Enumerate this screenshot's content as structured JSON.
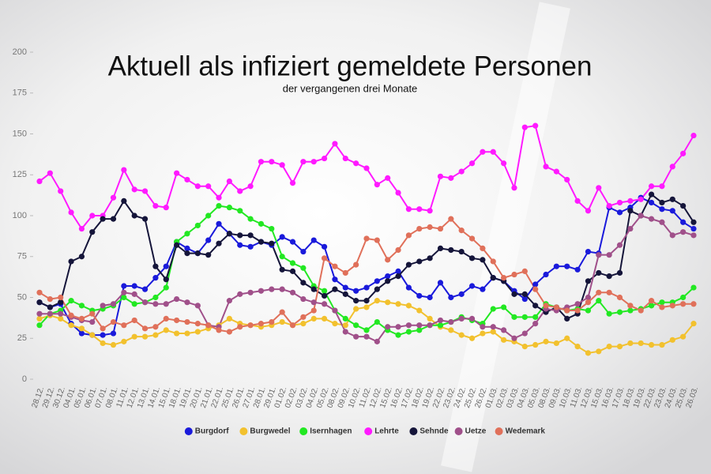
{
  "chart_data": {
    "type": "line",
    "title": "Aktuell als infiziert gemeldete Personen",
    "subtitle": "der vergangenen drei Monate",
    "categories": [
      "28.12.",
      "29.12.",
      "30.12.",
      "04.01.",
      "05.01.",
      "06.01.",
      "07.01.",
      "08.01.",
      "11.01.",
      "12.01.",
      "13.01.",
      "14.01.",
      "15.01.",
      "18.01.",
      "19.01.",
      "20.01.",
      "21.01.",
      "22.01.",
      "25.01.",
      "26.01.",
      "27.01.",
      "28.01.",
      "29.01.",
      "01.02.",
      "02.02.",
      "03.02.",
      "04.02.",
      "05.02.",
      "08.02.",
      "09.02.",
      "10.02.",
      "11.02.",
      "12.02.",
      "15.02.",
      "16.02.",
      "17.02.",
      "18.02.",
      "19.02.",
      "22.02.",
      "23.02.",
      "24.02.",
      "25.02.",
      "26.02.",
      "01.03.",
      "02.03.",
      "03.03.",
      "04.03.",
      "05.03.",
      "08.03.",
      "09.03.",
      "10.03.",
      "11.03.",
      "12.03.",
      "15.03.",
      "16.03.",
      "17.03.",
      "18.03.",
      "19.03.",
      "22.03.",
      "23.03.",
      "24.03.",
      "25.03.",
      "26.03."
    ],
    "series": [
      {
        "name": "Burgdorf",
        "color": "#1a1adb",
        "values": [
          47,
          44,
          46,
          34,
          28,
          27,
          27,
          28,
          57,
          57,
          55,
          62,
          69,
          84,
          80,
          77,
          85,
          95,
          89,
          82,
          81,
          84,
          82,
          87,
          84,
          78,
          85,
          81,
          61,
          56,
          54,
          56,
          60,
          63,
          66,
          56,
          51,
          50,
          59,
          50,
          52,
          57,
          55,
          62,
          60,
          54,
          49,
          58,
          64,
          69,
          69,
          67,
          78,
          77,
          105,
          102,
          105,
          111,
          108,
          104,
          103,
          96,
          92
        ]
      },
      {
        "name": "Burgwedel",
        "color": "#f2c12e",
        "values": [
          37,
          39,
          37,
          33,
          31,
          27,
          22,
          21,
          23,
          26,
          26,
          27,
          30,
          28,
          28,
          29,
          31,
          33,
          37,
          34,
          33,
          32,
          33,
          35,
          33,
          34,
          37,
          37,
          34,
          33,
          43,
          44,
          48,
          47,
          46,
          45,
          42,
          37,
          32,
          30,
          27,
          25,
          28,
          29,
          24,
          23,
          20,
          21,
          23,
          22,
          25,
          20,
          16,
          17,
          20,
          20,
          22,
          22,
          21,
          21,
          24,
          26,
          34
        ]
      },
      {
        "name": "Isernhagen",
        "color": "#22e822",
        "values": [
          33,
          40,
          42,
          48,
          45,
          42,
          43,
          45,
          50,
          46,
          47,
          50,
          56,
          84,
          89,
          94,
          100,
          106,
          105,
          103,
          98,
          95,
          92,
          75,
          71,
          68,
          57,
          54,
          42,
          37,
          33,
          30,
          35,
          30,
          27,
          29,
          30,
          33,
          33,
          35,
          38,
          36,
          34,
          43,
          44,
          38,
          38,
          38,
          46,
          44,
          42,
          43,
          42,
          48,
          40,
          41,
          42,
          43,
          45,
          47,
          47,
          50,
          56
        ]
      },
      {
        "name": "Lehrte",
        "color": "#ff1aff",
        "values": [
          121,
          126,
          115,
          102,
          92,
          100,
          100,
          111,
          128,
          116,
          115,
          106,
          105,
          126,
          122,
          118,
          118,
          111,
          121,
          115,
          118,
          133,
          133,
          131,
          120,
          133,
          133,
          135,
          144,
          135,
          132,
          129,
          119,
          123,
          114,
          104,
          104,
          103,
          124,
          123,
          127,
          132,
          139,
          139,
          132,
          117,
          154,
          155,
          130,
          127,
          122,
          109,
          103,
          117,
          106,
          108,
          109,
          110,
          118,
          118,
          130,
          138,
          149
        ]
      },
      {
        "name": "Sehnde",
        "color": "#15153a",
        "values": [
          47,
          44,
          47,
          72,
          75,
          90,
          98,
          98,
          109,
          100,
          98,
          69,
          61,
          82,
          77,
          77,
          76,
          83,
          89,
          88,
          88,
          84,
          83,
          67,
          66,
          59,
          55,
          51,
          55,
          52,
          48,
          48,
          55,
          60,
          63,
          70,
          72,
          74,
          80,
          79,
          78,
          74,
          73,
          62,
          60,
          52,
          52,
          45,
          41,
          44,
          37,
          40,
          60,
          65,
          63,
          65,
          103,
          100,
          113,
          108,
          110,
          106,
          96
        ]
      },
      {
        "name": "Uetze",
        "color": "#a0508a",
        "values": [
          40,
          40,
          40,
          38,
          36,
          35,
          45,
          46,
          53,
          52,
          47,
          46,
          46,
          49,
          47,
          45,
          33,
          32,
          48,
          52,
          53,
          54,
          55,
          55,
          53,
          49,
          47,
          46,
          42,
          29,
          26,
          26,
          23,
          32,
          32,
          33,
          33,
          33,
          36,
          35,
          37,
          37,
          32,
          32,
          30,
          25,
          28,
          34,
          43,
          42,
          44,
          46,
          50,
          76,
          76,
          82,
          92,
          100,
          98,
          96,
          88,
          90,
          88
        ]
      },
      {
        "name": "Wedemark",
        "color": "#e0705a",
        "values": [
          53,
          49,
          50,
          39,
          37,
          40,
          31,
          35,
          33,
          36,
          31,
          32,
          37,
          36,
          35,
          34,
          33,
          30,
          29,
          32,
          33,
          34,
          35,
          41,
          33,
          38,
          42,
          74,
          69,
          65,
          70,
          86,
          85,
          73,
          79,
          88,
          92,
          93,
          92,
          98,
          91,
          86,
          80,
          72,
          62,
          64,
          66,
          55,
          45,
          44,
          42,
          42,
          47,
          53,
          53,
          50,
          45,
          42,
          48,
          44,
          45,
          46,
          46
        ]
      }
    ],
    "ylim": [
      0,
      200
    ],
    "yticks": [
      0,
      25,
      50,
      75,
      100,
      125,
      150,
      175,
      200
    ],
    "legend": "bottom"
  }
}
